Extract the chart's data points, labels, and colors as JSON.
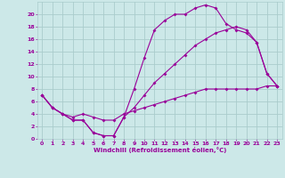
{
  "xlabel": "Windchill (Refroidissement éolien,°C)",
  "bg_color": "#cce8e8",
  "line_color": "#990099",
  "grid_color": "#aacccc",
  "xlim": [
    -0.5,
    23.5
  ],
  "ylim": [
    0,
    22
  ],
  "xticks": [
    0,
    1,
    2,
    3,
    4,
    5,
    6,
    7,
    8,
    9,
    10,
    11,
    12,
    13,
    14,
    15,
    16,
    17,
    18,
    19,
    20,
    21,
    22,
    23
  ],
  "yticks": [
    0,
    2,
    4,
    6,
    8,
    10,
    12,
    14,
    16,
    18,
    20
  ],
  "line1_x": [
    0,
    1,
    2,
    3,
    4,
    5,
    6,
    7,
    8,
    9,
    10,
    11,
    12,
    13,
    14,
    15,
    16,
    17,
    18,
    19,
    20,
    21,
    22,
    23
  ],
  "line1_y": [
    7,
    5,
    4,
    3,
    3,
    1,
    0.5,
    0.5,
    3.5,
    8,
    13,
    17.5,
    19,
    20,
    20,
    21,
    21.5,
    21,
    18.5,
    17.5,
    17,
    15.5,
    10.5,
    8.5
  ],
  "line2_x": [
    0,
    1,
    2,
    3,
    4,
    5,
    6,
    7,
    8,
    9,
    10,
    11,
    12,
    13,
    14,
    15,
    16,
    17,
    18,
    19,
    20,
    21,
    22,
    23
  ],
  "line2_y": [
    7,
    5,
    4,
    3,
    3,
    1,
    0.5,
    0.5,
    3.5,
    5,
    7,
    9,
    10.5,
    12,
    13.5,
    15,
    16,
    17,
    17.5,
    18,
    17.5,
    15.5,
    10.5,
    8.5
  ],
  "line3_x": [
    0,
    1,
    2,
    3,
    4,
    5,
    6,
    7,
    8,
    9,
    10,
    11,
    12,
    13,
    14,
    15,
    16,
    17,
    18,
    19,
    20,
    21,
    22,
    23
  ],
  "line3_y": [
    7,
    5,
    4,
    3.5,
    4,
    3.5,
    3,
    3,
    4,
    4.5,
    5,
    5.5,
    6,
    6.5,
    7,
    7.5,
    8,
    8,
    8,
    8,
    8,
    8,
    8.5,
    8.5
  ]
}
